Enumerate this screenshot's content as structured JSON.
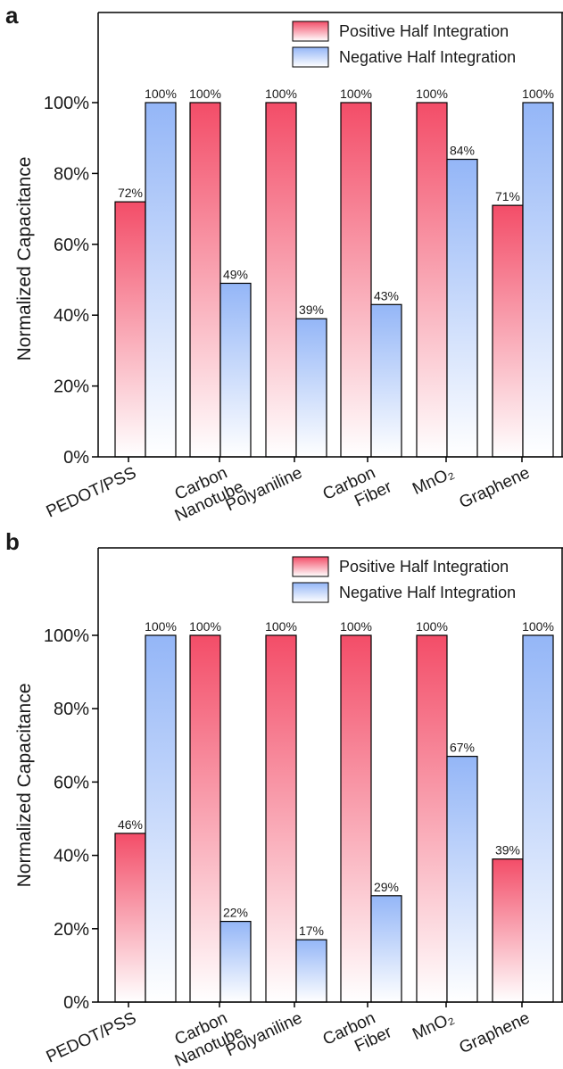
{
  "colors": {
    "positive_top": "#f34d68",
    "positive_bottom": "#ffffff",
    "negative_top": "#94b6f7",
    "negative_bottom": "#ffffff",
    "axis": "#000000"
  },
  "chart_data": [
    {
      "type": "bar",
      "panel": "a",
      "ylabel": "Normalized Capacitance",
      "ylim": [
        0,
        100
      ],
      "yticks": [
        "0%",
        "20%",
        "40%",
        "60%",
        "80%",
        "100%"
      ],
      "grid": false,
      "legend": "top-right",
      "categories": [
        [
          "PEDOT/PSS"
        ],
        [
          "Carbon",
          "Nanotube"
        ],
        [
          "Polyaniline"
        ],
        [
          "Carbon",
          "Fiber"
        ],
        [
          "MnO₂"
        ],
        [
          "Graphene"
        ]
      ],
      "series": [
        {
          "name": "Positive Half Integration",
          "values": [
            72,
            100,
            100,
            100,
            100,
            71
          ],
          "labels": [
            "72%",
            "100%",
            "100%",
            "100%",
            "100%",
            "71%"
          ]
        },
        {
          "name": "Negative Half Integration",
          "values": [
            100,
            49,
            39,
            43,
            84,
            100
          ],
          "labels": [
            "100%",
            "49%",
            "39%",
            "43%",
            "84%",
            "100%"
          ]
        }
      ]
    },
    {
      "type": "bar",
      "panel": "b",
      "ylabel": "Normalized Capacitance",
      "ylim": [
        0,
        100
      ],
      "yticks": [
        "0%",
        "20%",
        "40%",
        "60%",
        "80%",
        "100%"
      ],
      "grid": false,
      "legend": "top-right",
      "categories": [
        [
          "PEDOT/PSS"
        ],
        [
          "Carbon",
          "Nanotube"
        ],
        [
          "Polyaniline"
        ],
        [
          "Carbon",
          "Fiber"
        ],
        [
          "MnO₂"
        ],
        [
          "Graphene"
        ]
      ],
      "series": [
        {
          "name": "Positive Half Integration",
          "values": [
            46,
            100,
            100,
            100,
            100,
            39
          ],
          "labels": [
            "46%",
            "100%",
            "100%",
            "100%",
            "100%",
            "39%"
          ]
        },
        {
          "name": "Negative Half Integration",
          "values": [
            100,
            22,
            17,
            29,
            67,
            100
          ],
          "labels": [
            "100%",
            "22%",
            "17%",
            "29%",
            "67%",
            "100%"
          ]
        }
      ]
    }
  ]
}
